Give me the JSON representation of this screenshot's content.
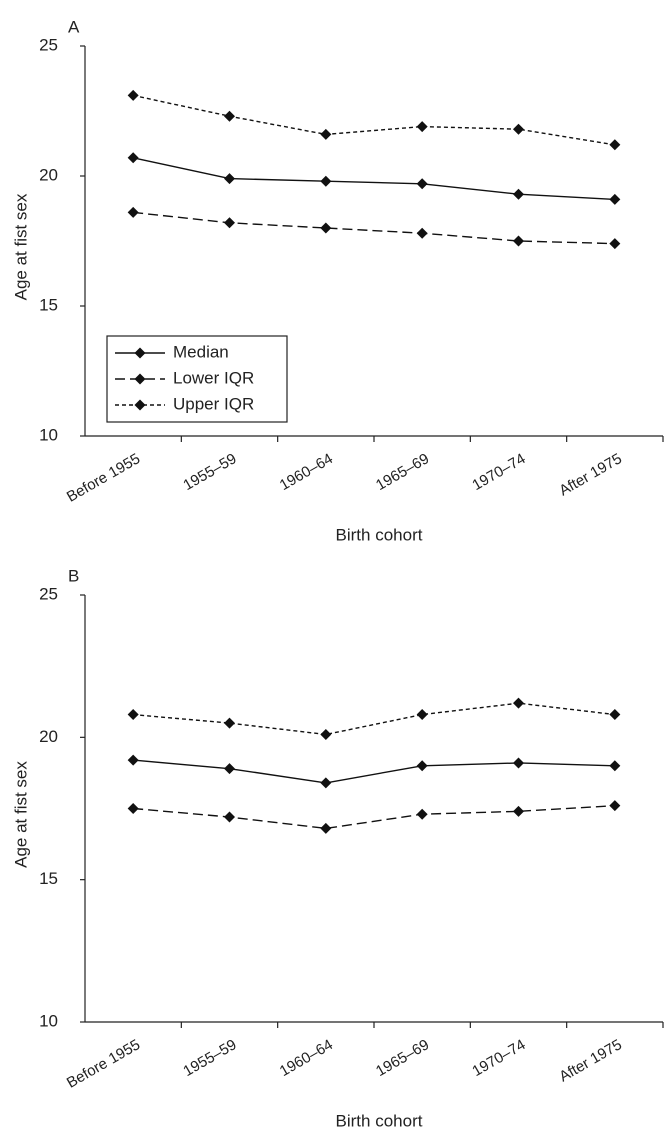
{
  "chart_data": [
    {
      "type": "line",
      "title": "A",
      "x_label": "Birth cohort",
      "y_label": "Age at fist sex",
      "categories": [
        "Before 1955",
        "1955–59",
        "1960–64",
        "1965–69",
        "1970–74",
        "After 1975"
      ],
      "series": [
        {
          "name": "Median",
          "color": "#111111",
          "dash": "solid",
          "values": [
            20.7,
            19.9,
            19.8,
            19.7,
            19.3,
            19.1
          ]
        },
        {
          "name": "Lower IQR",
          "color": "#111111",
          "dash": "dashed",
          "values": [
            18.6,
            18.2,
            18.0,
            17.8,
            17.5,
            17.4
          ]
        },
        {
          "name": "Upper IQR",
          "color": "#111111",
          "dash": "dotted",
          "values": [
            23.1,
            22.3,
            21.6,
            21.9,
            21.8,
            21.2
          ]
        }
      ],
      "ylim": [
        10,
        25
      ],
      "yticks": [
        10,
        15,
        20,
        25
      ],
      "legend": true
    },
    {
      "type": "line",
      "title": "B",
      "x_label": "Birth cohort",
      "y_label": "Age at fist sex",
      "categories": [
        "Before 1955",
        "1955–59",
        "1960–64",
        "1965–69",
        "1970–74",
        "After 1975"
      ],
      "series": [
        {
          "name": "Median",
          "color": "#111111",
          "dash": "solid",
          "values": [
            19.2,
            18.9,
            18.4,
            19.0,
            19.1,
            19.0
          ]
        },
        {
          "name": "Lower IQR",
          "color": "#111111",
          "dash": "dashed",
          "values": [
            17.5,
            17.2,
            16.8,
            17.3,
            17.4,
            17.6
          ]
        },
        {
          "name": "Upper IQR",
          "color": "#111111",
          "dash": "dotted",
          "values": [
            20.8,
            20.5,
            20.1,
            20.8,
            21.2,
            20.8
          ]
        }
      ],
      "ylim": [
        10,
        25
      ],
      "yticks": [
        10,
        15,
        20,
        25
      ],
      "legend": false
    }
  ]
}
